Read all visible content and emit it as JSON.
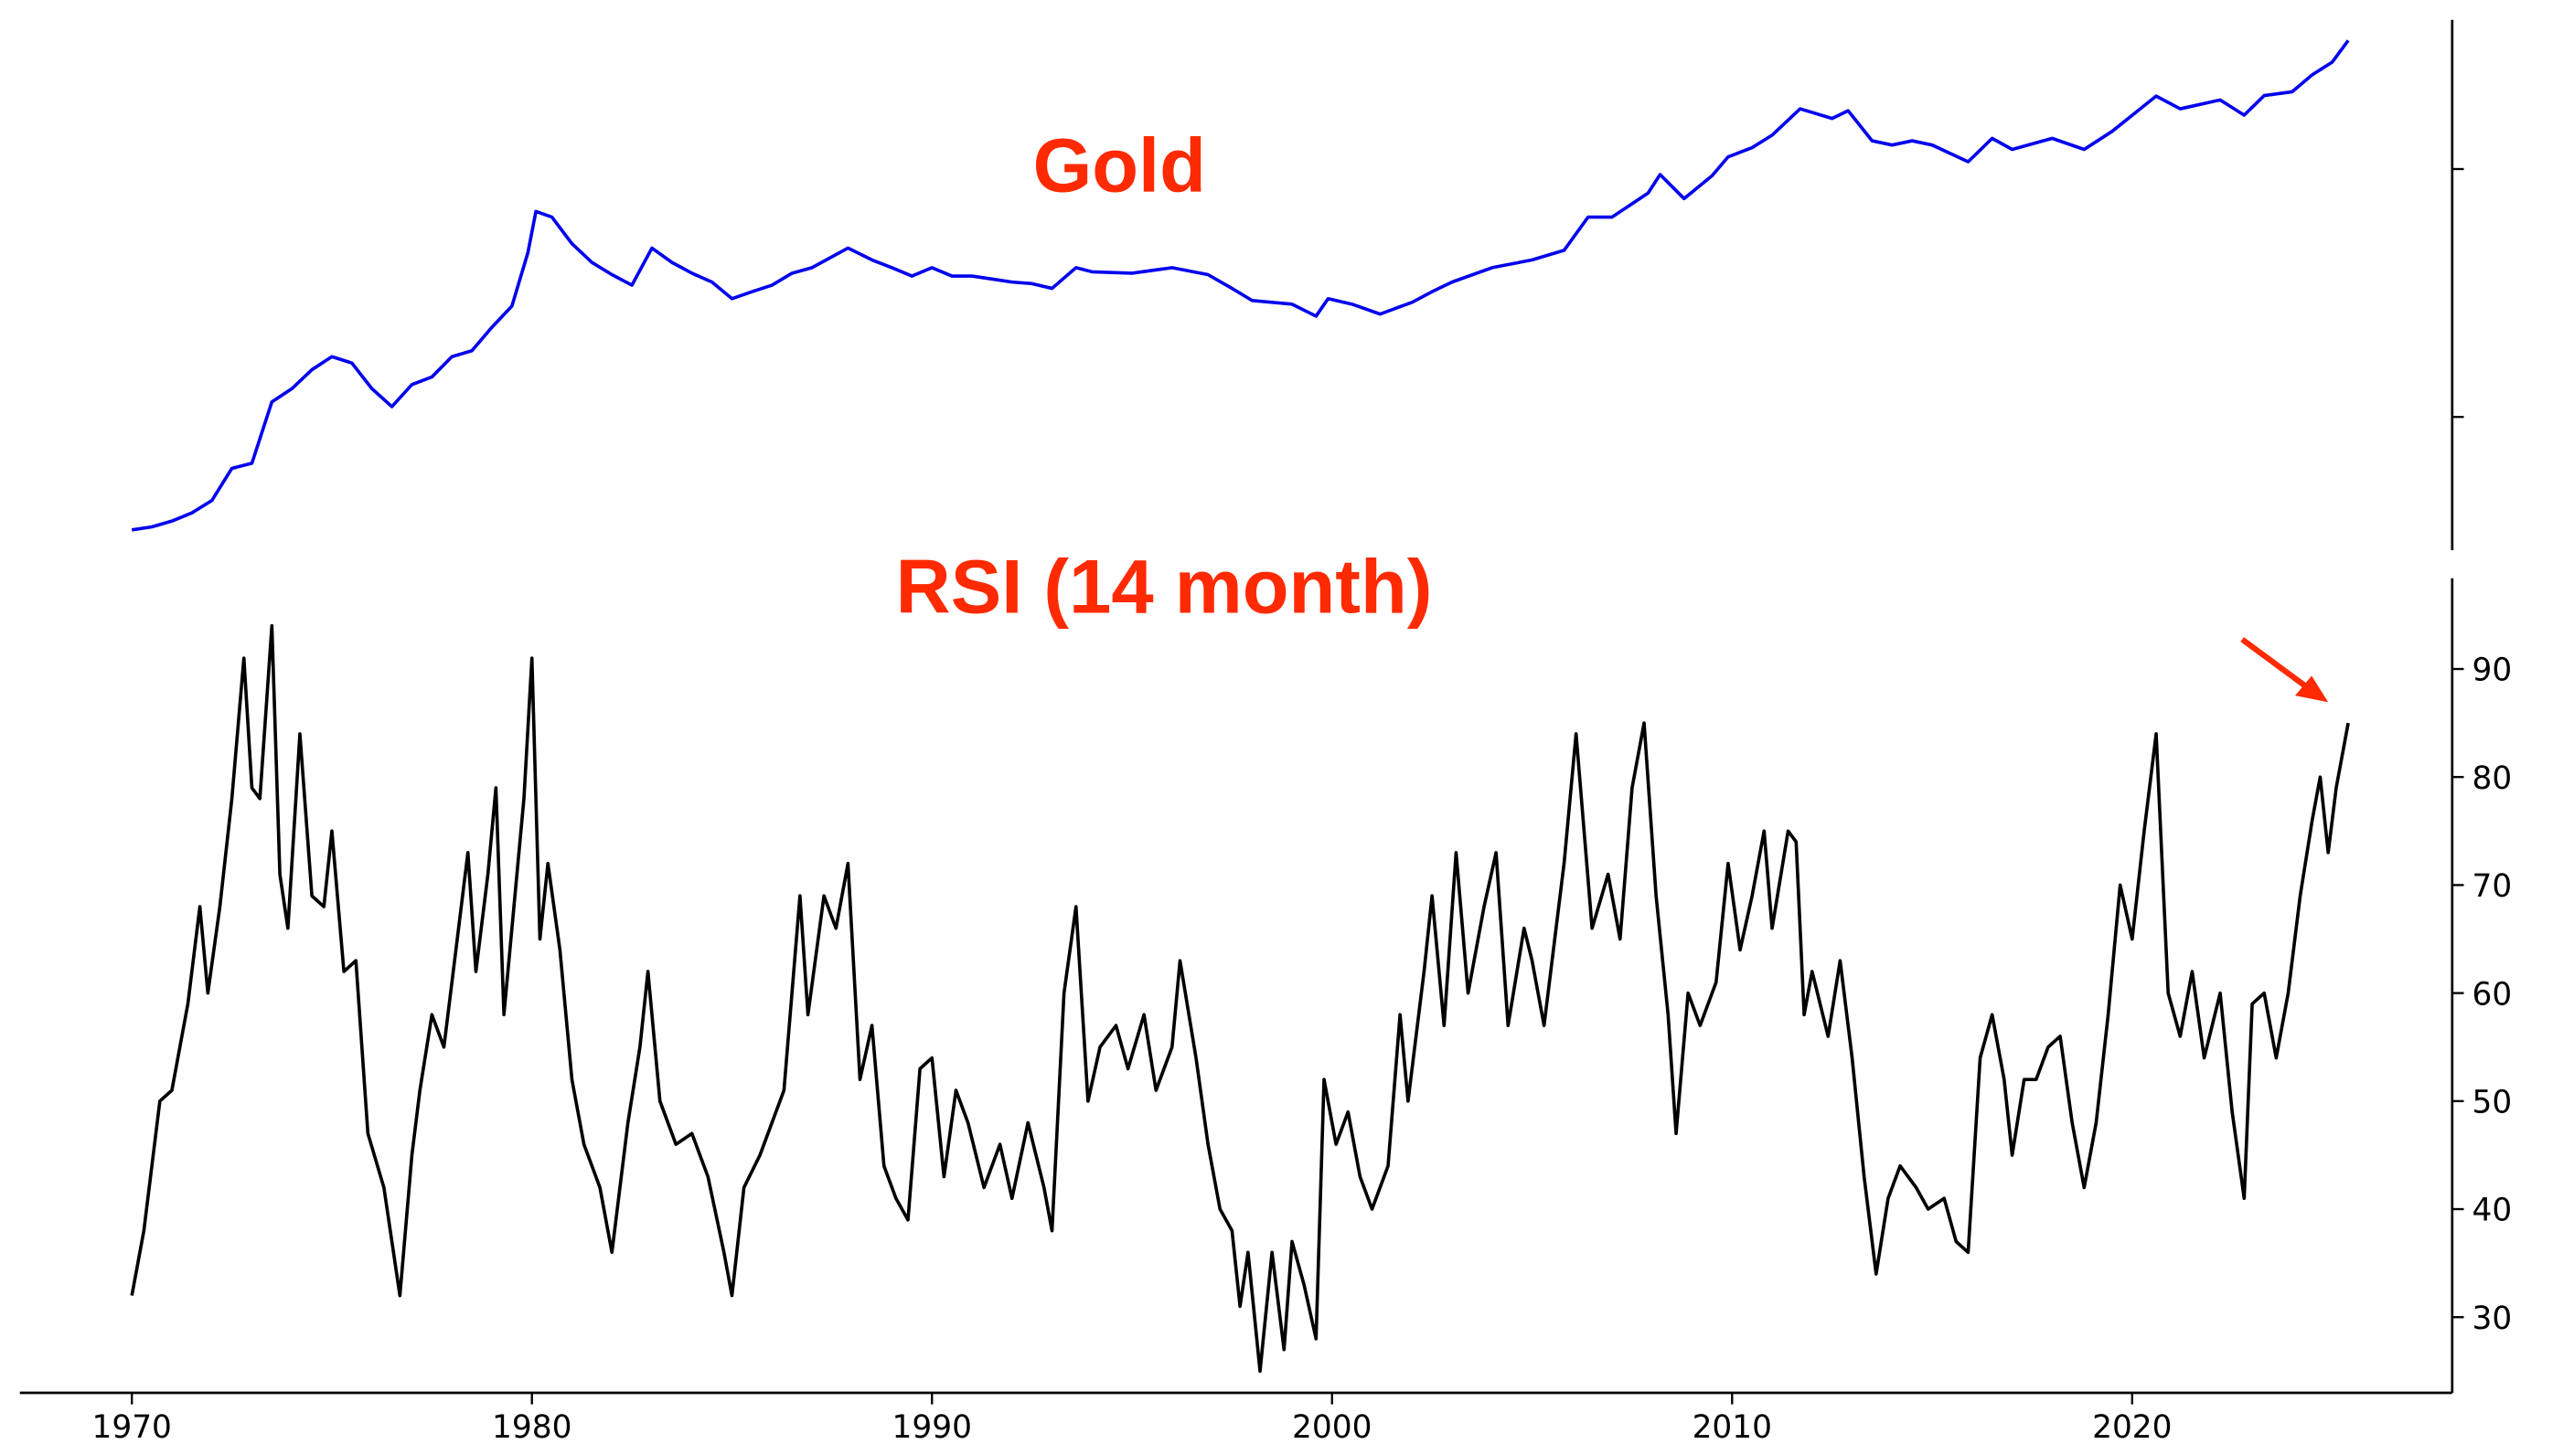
{
  "chart_data": [
    {
      "type": "line",
      "title": "Gold",
      "log_scale": true,
      "color": "#0000ee",
      "xlim": [
        1967.2,
        2028
      ],
      "ylim": [
        29,
        4000
      ],
      "yticks": [
        100,
        1000
      ],
      "x": [
        1970.0,
        1970.5,
        1971.0,
        1971.5,
        1972.0,
        1972.5,
        1973.0,
        1973.5,
        1974.0,
        1974.5,
        1975.0,
        1975.5,
        1976.0,
        1976.5,
        1977.0,
        1977.5,
        1978.0,
        1978.5,
        1979.0,
        1979.5,
        1979.9,
        1980.1,
        1980.5,
        1981.0,
        1981.5,
        1982.0,
        1982.5,
        1983.0,
        1983.5,
        1984.0,
        1984.5,
        1985.0,
        1985.5,
        1986.0,
        1986.5,
        1987.0,
        1987.9,
        1988.5,
        1989.0,
        1989.5,
        1990.0,
        1990.5,
        1991.0,
        1991.5,
        1992.0,
        1992.5,
        1993.0,
        1993.6,
        1994.0,
        1995.0,
        1996.0,
        1996.9,
        1997.5,
        1998.0,
        1999.0,
        1999.6,
        1999.9,
        2000.5,
        2001.2,
        2002.0,
        2002.5,
        2003.0,
        2004.0,
        2005.0,
        2005.8,
        2006.4,
        2007.0,
        2007.9,
        2008.2,
        2008.8,
        2009.5,
        2009.9,
        2010.5,
        2011.0,
        2011.7,
        2012.5,
        2012.9,
        2013.5,
        2014.0,
        2014.5,
        2015.0,
        2015.9,
        2016.5,
        2017.0,
        2018.0,
        2018.8,
        2019.5,
        2020.6,
        2021.2,
        2022.2,
        2022.8,
        2023.3,
        2024.0,
        2024.5,
        2025.0,
        2025.4
      ],
      "values": [
        35,
        36,
        38,
        41,
        46,
        62,
        65,
        115,
        130,
        155,
        175,
        165,
        130,
        110,
        135,
        145,
        175,
        185,
        230,
        280,
        460,
        675,
        640,
        500,
        420,
        375,
        340,
        480,
        420,
        380,
        350,
        300,
        320,
        340,
        380,
        400,
        480,
        430,
        400,
        370,
        400,
        370,
        370,
        360,
        350,
        345,
        330,
        400,
        385,
        380,
        400,
        375,
        330,
        295,
        285,
        255,
        300,
        285,
        260,
        290,
        320,
        350,
        400,
        430,
        470,
        640,
        640,
        800,
        950,
        760,
        940,
        1120,
        1220,
        1370,
        1750,
        1600,
        1720,
        1300,
        1250,
        1300,
        1250,
        1070,
        1330,
        1200,
        1330,
        1200,
        1420,
        1970,
        1750,
        1900,
        1650,
        1980,
        2050,
        2400,
        2700,
        3300
      ]
    },
    {
      "type": "line",
      "title": "RSI (14 month)",
      "color": "#000000",
      "xlim": [
        1967.2,
        2028
      ],
      "ylim": [
        23,
        98.4
      ],
      "yticks": [
        30,
        40,
        50,
        60,
        70,
        80,
        90
      ],
      "xticks": [
        1970,
        1980,
        1990,
        2000,
        2010,
        2020
      ],
      "x": [
        1970.0,
        1970.3,
        1970.7,
        1971.0,
        1971.4,
        1971.7,
        1971.9,
        1972.2,
        1972.5,
        1972.8,
        1973.0,
        1973.2,
        1973.5,
        1973.7,
        1973.9,
        1974.2,
        1974.5,
        1974.8,
        1975.0,
        1975.3,
        1975.6,
        1975.9,
        1976.3,
        1976.7,
        1977.0,
        1977.2,
        1977.5,
        1977.8,
        1978.0,
        1978.4,
        1978.6,
        1978.9,
        1979.1,
        1979.3,
        1979.6,
        1979.8,
        1980.0,
        1980.2,
        1980.4,
        1980.7,
        1981.0,
        1981.3,
        1981.7,
        1982.0,
        1982.4,
        1982.7,
        1982.9,
        1983.2,
        1983.6,
        1984.0,
        1984.4,
        1984.8,
        1985.0,
        1985.3,
        1985.7,
        1986.0,
        1986.3,
        1986.7,
        1986.9,
        1987.3,
        1987.6,
        1987.9,
        1988.2,
        1988.5,
        1988.8,
        1989.1,
        1989.4,
        1989.7,
        1990.0,
        1990.3,
        1990.6,
        1990.9,
        1991.3,
        1991.7,
        1992.0,
        1992.4,
        1992.8,
        1993.0,
        1993.3,
        1993.6,
        1993.9,
        1994.2,
        1994.6,
        1994.9,
        1995.3,
        1995.6,
        1996.0,
        1996.2,
        1996.6,
        1996.9,
        1997.2,
        1997.5,
        1997.7,
        1997.9,
        1998.2,
        1998.5,
        1998.8,
        1999.0,
        1999.3,
        1999.6,
        1999.8,
        2000.1,
        2000.4,
        2000.7,
        2001.0,
        2001.4,
        2001.7,
        2001.9,
        2002.3,
        2002.5,
        2002.8,
        2003.1,
        2003.4,
        2003.8,
        2004.1,
        2004.4,
        2004.8,
        2005.0,
        2005.3,
        2005.8,
        2006.1,
        2006.5,
        2006.9,
        2007.2,
        2007.5,
        2007.8,
        2008.1,
        2008.4,
        2008.6,
        2008.9,
        2009.2,
        2009.6,
        2009.9,
        2010.2,
        2010.5,
        2010.8,
        2011.0,
        2011.4,
        2011.6,
        2011.8,
        2012.0,
        2012.4,
        2012.7,
        2013.0,
        2013.3,
        2013.6,
        2013.9,
        2014.2,
        2014.6,
        2014.9,
        2015.3,
        2015.6,
        2015.9,
        2016.2,
        2016.5,
        2016.8,
        2017.0,
        2017.3,
        2017.6,
        2017.9,
        2018.2,
        2018.5,
        2018.8,
        2019.1,
        2019.4,
        2019.7,
        2020.0,
        2020.3,
        2020.6,
        2020.9,
        2021.2,
        2021.5,
        2021.8,
        2022.2,
        2022.5,
        2022.8,
        2023.0,
        2023.3,
        2023.6,
        2023.9,
        2024.2,
        2024.5,
        2024.7,
        2024.9,
        2025.1,
        2025.4
      ],
      "values": [
        32,
        38,
        50,
        51,
        59,
        68,
        60,
        68,
        78,
        91,
        79,
        78,
        94,
        71,
        66,
        84,
        69,
        68,
        75,
        62,
        63,
        47,
        42,
        32,
        45,
        51,
        58,
        55,
        61,
        73,
        62,
        71,
        79,
        58,
        70,
        78,
        91,
        65,
        72,
        64,
        52,
        46,
        42,
        36,
        48,
        55,
        62,
        50,
        46,
        47,
        43,
        36,
        32,
        42,
        45,
        48,
        51,
        69,
        58,
        69,
        66,
        72,
        52,
        57,
        44,
        41,
        39,
        53,
        54,
        43,
        51,
        48,
        42,
        46,
        41,
        48,
        42,
        38,
        60,
        68,
        50,
        55,
        57,
        53,
        58,
        51,
        55,
        63,
        54,
        46,
        40,
        38,
        31,
        36,
        25,
        36,
        27,
        37,
        33,
        28,
        52,
        46,
        49,
        43,
        40,
        44,
        58,
        50,
        62,
        69,
        57,
        73,
        60,
        68,
        73,
        57,
        66,
        63,
        57,
        72,
        84,
        66,
        71,
        65,
        79,
        85,
        69,
        58,
        47,
        60,
        57,
        61,
        72,
        64,
        69,
        75,
        66,
        75,
        74,
        58,
        62,
        56,
        63,
        54,
        43,
        34,
        41,
        44,
        42,
        40,
        41,
        37,
        36,
        54,
        58,
        52,
        45,
        52,
        52,
        55,
        56,
        48,
        42,
        48,
        58,
        70,
        65,
        75,
        84,
        60,
        56,
        62,
        54,
        60,
        49,
        41,
        59,
        60,
        54,
        60,
        69,
        76,
        80,
        73,
        79,
        85
      ]
    }
  ]
}
